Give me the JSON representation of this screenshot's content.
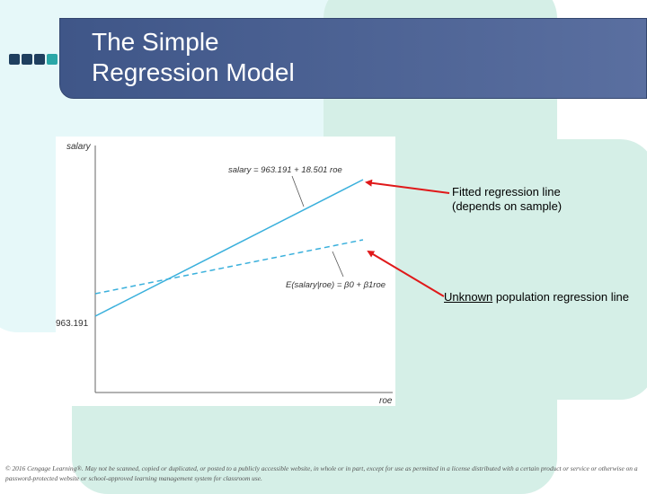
{
  "slide": {
    "title": "The Simple\nRegression Model",
    "copyright": "© 2016 Cengage Learning®. May not be scanned, copied or duplicated, or posted to a publicly accessible website, in whole or in part, except for use as permitted in a license distributed with a certain product or service or otherwise on a password-protected website or school-approved learning management system for classroom use."
  },
  "figure": {
    "y_axis_label": "salary",
    "x_axis_label": "roe",
    "intercept_label": "963.191",
    "fitted_equation": "salary = 963.191 + 18.501 roe",
    "population_equation": "E(salary|roe) = β0 + β1roe"
  },
  "annotations": {
    "fitted_line_1": "Fitted regression line",
    "fitted_line_2": "(depends on sample)",
    "population_underlined": "Unknown",
    "population_rest": " population regression line"
  },
  "colors": {
    "line": "#3ab0dc",
    "arrow": "#e0191a",
    "title_bar": "#4a5e90"
  }
}
